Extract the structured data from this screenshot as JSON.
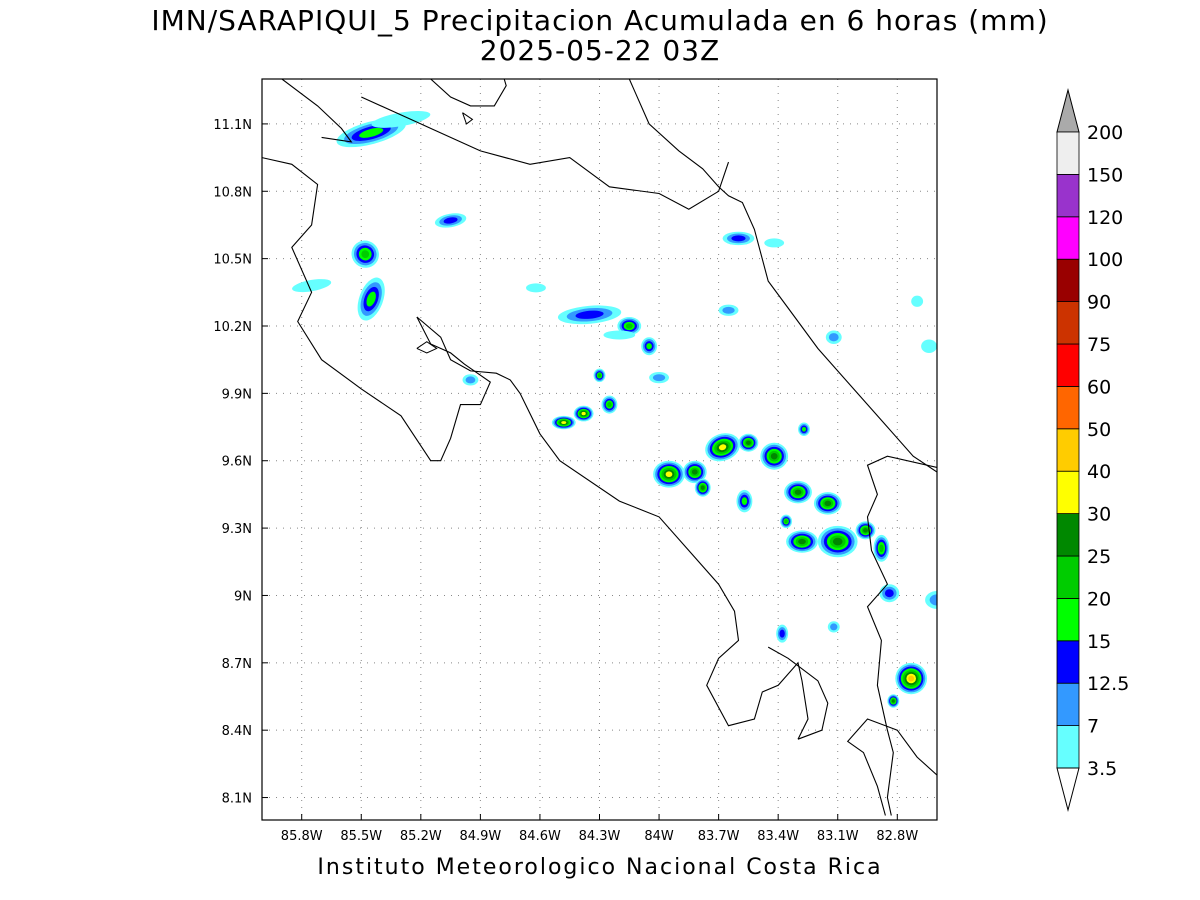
{
  "title": {
    "line1": "IMN/SARAPIQUI_5 Precipitacion Acumulada en 6 horas (mm)",
    "line2": "2025-05-22 03Z"
  },
  "footer": "Instituto Meteorologico Nacional Costa Rica",
  "map": {
    "lon_range": [
      -86.0,
      -82.6
    ],
    "lat_range": [
      8.0,
      11.3
    ],
    "lon_ticks": [
      {
        "value": -85.8,
        "label": "85.8W"
      },
      {
        "value": -85.5,
        "label": "85.5W"
      },
      {
        "value": -85.2,
        "label": "85.2W"
      },
      {
        "value": -84.9,
        "label": "84.9W"
      },
      {
        "value": -84.6,
        "label": "84.6W"
      },
      {
        "value": -84.3,
        "label": "84.3W"
      },
      {
        "value": -84.0,
        "label": "84W"
      },
      {
        "value": -83.7,
        "label": "83.7W"
      },
      {
        "value": -83.4,
        "label": "83.4W"
      },
      {
        "value": -83.1,
        "label": "83.1W"
      },
      {
        "value": -82.8,
        "label": "82.8W"
      }
    ],
    "lat_ticks": [
      {
        "value": 11.1,
        "label": "11.1N"
      },
      {
        "value": 10.8,
        "label": "10.8N"
      },
      {
        "value": 10.5,
        "label": "10.5N"
      },
      {
        "value": 10.2,
        "label": "10.2N"
      },
      {
        "value": 9.9,
        "label": "9.9N"
      },
      {
        "value": 9.6,
        "label": "9.6N"
      },
      {
        "value": 9.3,
        "label": "9.3N"
      },
      {
        "value": 9.0,
        "label": "9N"
      },
      {
        "value": 8.7,
        "label": "8.7N"
      },
      {
        "value": 8.4,
        "label": "8.4N"
      },
      {
        "value": 8.1,
        "label": "8.1N"
      }
    ],
    "grid": "dotted"
  },
  "colorbar": {
    "levels": [
      "3.5",
      "7",
      "12.5",
      "15",
      "20",
      "25",
      "30",
      "40",
      "50",
      "60",
      "75",
      "90",
      "100",
      "120",
      "150",
      "200"
    ],
    "colors": [
      "#66ffff",
      "#3399ff",
      "#0000ff",
      "#00ff00",
      "#00cc00",
      "#008800",
      "#ffff00",
      "#ffcc00",
      "#ff6600",
      "#ff0000",
      "#cc3300",
      "#990000",
      "#ff00ff",
      "#9933cc",
      "#eeeeee"
    ],
    "over_color": "#aaaaaa",
    "under_color": "#ffffff"
  },
  "precip_cells": [
    {
      "lon": -85.45,
      "lat": 11.06,
      "mm": 15,
      "rx": 0.18,
      "ry": 0.05,
      "rot": -15
    },
    {
      "lon": -85.3,
      "lat": 11.12,
      "mm": 5,
      "rx": 0.15,
      "ry": 0.03,
      "rot": -10
    },
    {
      "lon": -85.05,
      "lat": 10.67,
      "mm": 12.5,
      "rx": 0.08,
      "ry": 0.03,
      "rot": -10
    },
    {
      "lon": -85.48,
      "lat": 10.52,
      "mm": 20,
      "rx": 0.07,
      "ry": 0.06,
      "rot": 40
    },
    {
      "lon": -85.45,
      "lat": 10.32,
      "mm": 15,
      "rx": 0.06,
      "ry": 0.1,
      "rot": 20
    },
    {
      "lon": -85.75,
      "lat": 10.38,
      "mm": 5,
      "rx": 0.1,
      "ry": 0.025,
      "rot": -10
    },
    {
      "lon": -84.35,
      "lat": 10.25,
      "mm": 12.5,
      "rx": 0.16,
      "ry": 0.04,
      "rot": -5
    },
    {
      "lon": -84.15,
      "lat": 10.2,
      "mm": 20,
      "rx": 0.06,
      "ry": 0.04,
      "rot": 0
    },
    {
      "lon": -84.05,
      "lat": 10.11,
      "mm": 15,
      "rx": 0.04,
      "ry": 0.04,
      "rot": 0
    },
    {
      "lon": -83.6,
      "lat": 10.59,
      "mm": 12.5,
      "rx": 0.08,
      "ry": 0.03,
      "rot": 0
    },
    {
      "lon": -84.3,
      "lat": 9.98,
      "mm": 20,
      "rx": 0.03,
      "ry": 0.03,
      "rot": 0
    },
    {
      "lon": -84.25,
      "lat": 9.85,
      "mm": 20,
      "rx": 0.04,
      "ry": 0.04,
      "rot": 0
    },
    {
      "lon": -84.38,
      "lat": 9.81,
      "mm": 30,
      "rx": 0.05,
      "ry": 0.035,
      "rot": 0
    },
    {
      "lon": -84.48,
      "lat": 9.77,
      "mm": 30,
      "rx": 0.06,
      "ry": 0.03,
      "rot": 0
    },
    {
      "lon": -83.95,
      "lat": 9.54,
      "mm": 30,
      "rx": 0.08,
      "ry": 0.06,
      "rot": 0
    },
    {
      "lon": -83.82,
      "lat": 9.55,
      "mm": 25,
      "rx": 0.06,
      "ry": 0.05,
      "rot": 0
    },
    {
      "lon": -83.78,
      "lat": 9.48,
      "mm": 25,
      "rx": 0.04,
      "ry": 0.04,
      "rot": 0
    },
    {
      "lon": -83.68,
      "lat": 9.66,
      "mm": 30,
      "rx": 0.09,
      "ry": 0.06,
      "rot": -20
    },
    {
      "lon": -83.55,
      "lat": 9.68,
      "mm": 25,
      "rx": 0.05,
      "ry": 0.04,
      "rot": 0
    },
    {
      "lon": -83.42,
      "lat": 9.62,
      "mm": 25,
      "rx": 0.07,
      "ry": 0.06,
      "rot": 0
    },
    {
      "lon": -83.57,
      "lat": 9.42,
      "mm": 15,
      "rx": 0.04,
      "ry": 0.05,
      "rot": 0
    },
    {
      "lon": -83.3,
      "lat": 9.46,
      "mm": 25,
      "rx": 0.07,
      "ry": 0.05,
      "rot": 0
    },
    {
      "lon": -83.15,
      "lat": 9.41,
      "mm": 25,
      "rx": 0.07,
      "ry": 0.05,
      "rot": 0
    },
    {
      "lon": -83.28,
      "lat": 9.24,
      "mm": 25,
      "rx": 0.08,
      "ry": 0.05,
      "rot": 0
    },
    {
      "lon": -83.1,
      "lat": 9.24,
      "mm": 25,
      "rx": 0.1,
      "ry": 0.07,
      "rot": 0
    },
    {
      "lon": -82.96,
      "lat": 9.29,
      "mm": 25,
      "rx": 0.05,
      "ry": 0.04,
      "rot": 0
    },
    {
      "lon": -83.27,
      "lat": 9.74,
      "mm": 15,
      "rx": 0.03,
      "ry": 0.03,
      "rot": 0
    },
    {
      "lon": -83.36,
      "lat": 9.33,
      "mm": 20,
      "rx": 0.03,
      "ry": 0.03,
      "rot": 0
    },
    {
      "lon": -82.88,
      "lat": 9.21,
      "mm": 20,
      "rx": 0.04,
      "ry": 0.06,
      "rot": 0
    },
    {
      "lon": -82.84,
      "lat": 9.01,
      "mm": 12.5,
      "rx": 0.05,
      "ry": 0.04,
      "rot": 0
    },
    {
      "lon": -82.73,
      "lat": 8.63,
      "mm": 40,
      "rx": 0.08,
      "ry": 0.07,
      "rot": 0
    },
    {
      "lon": -82.82,
      "lat": 8.53,
      "mm": 25,
      "rx": 0.03,
      "ry": 0.03,
      "rot": 0
    },
    {
      "lon": -83.38,
      "lat": 8.83,
      "mm": 12.5,
      "rx": 0.03,
      "ry": 0.04,
      "rot": 0
    },
    {
      "lon": -83.12,
      "lat": 8.86,
      "mm": 7,
      "rx": 0.03,
      "ry": 0.025,
      "rot": 0
    },
    {
      "lon": -82.6,
      "lat": 8.98,
      "mm": 7,
      "rx": 0.06,
      "ry": 0.04,
      "rot": 0
    },
    {
      "lon": -83.12,
      "lat": 10.15,
      "mm": 7,
      "rx": 0.04,
      "ry": 0.03,
      "rot": 0
    },
    {
      "lon": -83.65,
      "lat": 10.27,
      "mm": 7,
      "rx": 0.05,
      "ry": 0.025,
      "rot": 0
    },
    {
      "lon": -84.0,
      "lat": 9.97,
      "mm": 7,
      "rx": 0.05,
      "ry": 0.025,
      "rot": 0
    },
    {
      "lon": -84.95,
      "lat": 9.96,
      "mm": 7,
      "rx": 0.04,
      "ry": 0.025,
      "rot": 0
    },
    {
      "lon": -84.62,
      "lat": 10.37,
      "mm": 3.5,
      "rx": 0.05,
      "ry": 0.02,
      "rot": 0
    },
    {
      "lon": -82.64,
      "lat": 10.11,
      "mm": 3.5,
      "rx": 0.04,
      "ry": 0.03,
      "rot": 0
    },
    {
      "lon": -82.7,
      "lat": 10.31,
      "mm": 3.5,
      "rx": 0.03,
      "ry": 0.025,
      "rot": 0
    },
    {
      "lon": -83.42,
      "lat": 10.57,
      "mm": 3.5,
      "rx": 0.05,
      "ry": 0.02,
      "rot": 0
    },
    {
      "lon": -84.2,
      "lat": 10.16,
      "mm": 3.5,
      "rx": 0.08,
      "ry": 0.02,
      "rot": 0
    }
  ],
  "outlines": [
    {
      "name": "nicaragua-lake-shore",
      "pts": [
        [
          -85.9,
          11.3
        ],
        [
          -85.72,
          11.18
        ],
        [
          -85.6,
          11.08
        ],
        [
          -85.55,
          11.02
        ],
        [
          -85.7,
          11.04
        ]
      ]
    },
    {
      "name": "lake-outline",
      "pts": [
        [
          -85.15,
          11.3
        ],
        [
          -85.05,
          11.22
        ],
        [
          -84.95,
          11.18
        ],
        [
          -84.83,
          11.18
        ],
        [
          -84.77,
          11.27
        ],
        [
          -84.78,
          11.3
        ]
      ]
    },
    {
      "name": "nicaragua-border",
      "pts": [
        [
          -85.5,
          11.22
        ],
        [
          -85.2,
          11.1
        ],
        [
          -84.9,
          10.98
        ],
        [
          -84.65,
          10.92
        ],
        [
          -84.45,
          10.95
        ],
        [
          -84.25,
          10.82
        ],
        [
          -84.0,
          10.79
        ],
        [
          -83.85,
          10.72
        ],
        [
          -83.7,
          10.8
        ],
        [
          -83.65,
          10.93
        ]
      ]
    },
    {
      "name": "caribbean-coast-north",
      "pts": [
        [
          -84.15,
          11.3
        ],
        [
          -84.05,
          11.1
        ],
        [
          -83.9,
          10.98
        ],
        [
          -83.78,
          10.9
        ],
        [
          -83.7,
          10.82
        ],
        [
          -83.65,
          10.78
        ],
        [
          -83.58,
          10.75
        ],
        [
          -83.52,
          10.63
        ],
        [
          -83.45,
          10.4
        ],
        [
          -83.35,
          10.28
        ],
        [
          -83.2,
          10.1
        ],
        [
          -83.0,
          9.9
        ],
        [
          -82.85,
          9.75
        ],
        [
          -82.72,
          9.62
        ],
        [
          -82.6,
          9.55
        ]
      ]
    },
    {
      "name": "pacific-coast-guanacaste",
      "pts": [
        [
          -86.0,
          10.95
        ],
        [
          -85.85,
          10.92
        ],
        [
          -85.72,
          10.83
        ],
        [
          -85.75,
          10.65
        ],
        [
          -85.85,
          10.55
        ],
        [
          -85.75,
          10.35
        ],
        [
          -85.82,
          10.22
        ],
        [
          -85.7,
          10.05
        ],
        [
          -85.5,
          9.92
        ],
        [
          -85.3,
          9.8
        ],
        [
          -85.15,
          9.6
        ],
        [
          -85.1,
          9.6
        ],
        [
          -85.05,
          9.7
        ],
        [
          -85.0,
          9.85
        ],
        [
          -84.9,
          9.85
        ],
        [
          -84.85,
          9.95
        ],
        [
          -84.98,
          10.03
        ],
        [
          -85.05,
          10.08
        ],
        [
          -85.15,
          10.12
        ],
        [
          -85.22,
          10.24
        ]
      ]
    },
    {
      "name": "gulf-of-nicoya-shore",
      "pts": [
        [
          -85.22,
          10.24
        ],
        [
          -85.1,
          10.15
        ],
        [
          -85.05,
          10.05
        ],
        [
          -84.95,
          10.0
        ],
        [
          -84.82,
          9.99
        ],
        [
          -84.75,
          9.96
        ],
        [
          -84.7,
          9.9
        ],
        [
          -84.6,
          9.72
        ],
        [
          -84.5,
          9.6
        ],
        [
          -84.2,
          9.42
        ],
        [
          -84.0,
          9.35
        ],
        [
          -83.85,
          9.2
        ],
        [
          -83.7,
          9.05
        ],
        [
          -83.62,
          8.93
        ],
        [
          -83.6,
          8.8
        ],
        [
          -83.7,
          8.72
        ],
        [
          -83.76,
          8.6
        ],
        [
          -83.65,
          8.42
        ],
        [
          -83.52,
          8.45
        ],
        [
          -83.48,
          8.57
        ],
        [
          -83.4,
          8.6
        ],
        [
          -83.3,
          8.7
        ],
        [
          -83.28,
          8.62
        ],
        [
          -83.25,
          8.45
        ],
        [
          -83.3,
          8.36
        ]
      ]
    },
    {
      "name": "osa-gulf-shore",
      "pts": [
        [
          -83.3,
          8.36
        ],
        [
          -83.18,
          8.4
        ],
        [
          -83.15,
          8.52
        ],
        [
          -83.2,
          8.62
        ],
        [
          -83.35,
          8.72
        ],
        [
          -83.45,
          8.77
        ]
      ]
    },
    {
      "name": "panama-border",
      "pts": [
        [
          -82.6,
          9.57
        ],
        [
          -82.85,
          9.62
        ],
        [
          -82.95,
          9.58
        ],
        [
          -82.9,
          9.45
        ],
        [
          -82.95,
          9.35
        ],
        [
          -82.93,
          9.2
        ],
        [
          -82.85,
          9.05
        ],
        [
          -82.95,
          8.95
        ],
        [
          -82.88,
          8.8
        ],
        [
          -82.9,
          8.6
        ],
        [
          -82.85,
          8.4
        ],
        [
          -82.82,
          8.3
        ],
        [
          -82.85,
          8.1
        ],
        [
          -82.83,
          8.02
        ]
      ]
    },
    {
      "name": "burica-shore",
      "pts": [
        [
          -82.86,
          8.02
        ],
        [
          -82.9,
          8.15
        ],
        [
          -82.97,
          8.3
        ],
        [
          -83.05,
          8.35
        ],
        [
          -82.95,
          8.45
        ],
        [
          -82.8,
          8.4
        ],
        [
          -82.7,
          8.28
        ],
        [
          -82.6,
          8.2
        ]
      ]
    }
  ]
}
